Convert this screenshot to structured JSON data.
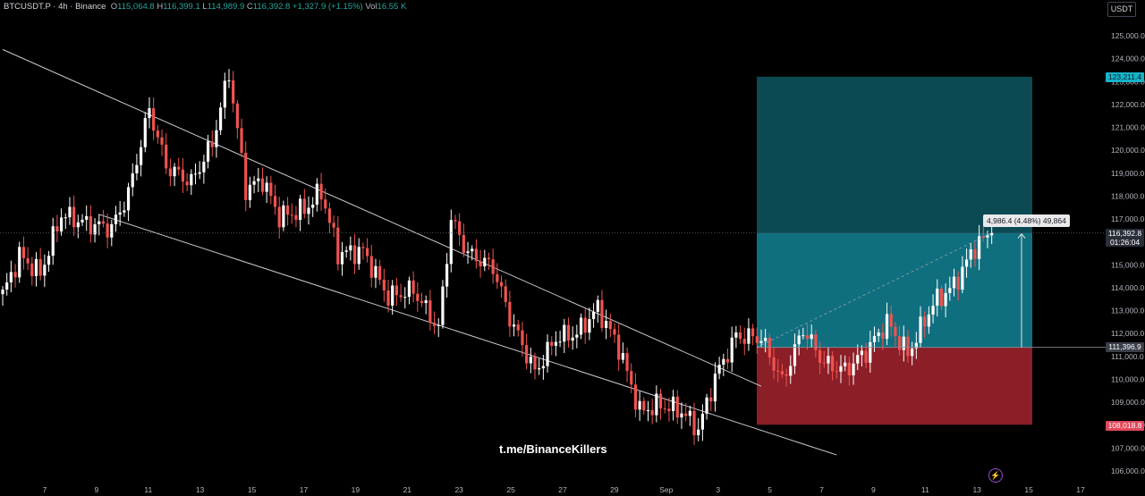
{
  "legend": {
    "symbol": "BTCUSDT.P",
    "interval": "4h",
    "exchange": "Binance",
    "open_key": "O",
    "open": "115,064.8",
    "high_key": "H",
    "high": "116,399.1",
    "low_key": "L",
    "low": "114,989.9",
    "close_key": "C",
    "close": "116,392.8",
    "change": "+1,327.9 (+1.15%)",
    "vol_key": "Vol",
    "vol": "16.55 K"
  },
  "currency": "USDT",
  "watermark": "t.me/BinanceKillers",
  "measure_label": "4,986.4 (4.48%) 49,864",
  "price_labels": {
    "current_price": "116,392.8",
    "countdown": "01:26:04",
    "target": "123,211.4",
    "entry": "111,396.9",
    "stop": "108,018.8"
  },
  "colors": {
    "up": "#26a69a",
    "down": "#ef5350",
    "profit_zone": "#0f6f7f",
    "loss_zone": "#8b1e27",
    "target_zone": "#0b4a52",
    "background": "#000000"
  },
  "chart_data": {
    "type": "candlestick",
    "y_axis": {
      "ylim": [
        105700,
        125800
      ],
      "ticks": [
        "106,000.0",
        "107,000.0",
        "108,000.0",
        "109,000.0",
        "110,000.0",
        "111,000.0",
        "112,000.0",
        "113,000.0",
        "114,000.0",
        "115,000.0",
        "116,000.0",
        "117,000.0",
        "118,000.0",
        "119,000.0",
        "120,000.0",
        "121,000.0",
        "122,000.0",
        "123,000.0",
        "124,000.0",
        "125,000.0"
      ]
    },
    "x_axis": {
      "ticks": [
        "7",
        "9",
        "11",
        "13",
        "15",
        "17",
        "19",
        "21",
        "23",
        "25",
        "27",
        "29",
        "Sep",
        "3",
        "5",
        "7",
        "9",
        "11",
        "13",
        "15",
        "17"
      ]
    },
    "last_close": 116392.8,
    "trendlines": [
      {
        "from": [
          0,
          124400
        ],
        "to": [
          181,
          109700
        ]
      },
      {
        "from": [
          23,
          117200
        ],
        "to": [
          199,
          106700
        ]
      }
    ],
    "position": {
      "type": "long",
      "entry": 111396.9,
      "target": 123211.4,
      "stop": 108018.8
    },
    "grid": false
  }
}
